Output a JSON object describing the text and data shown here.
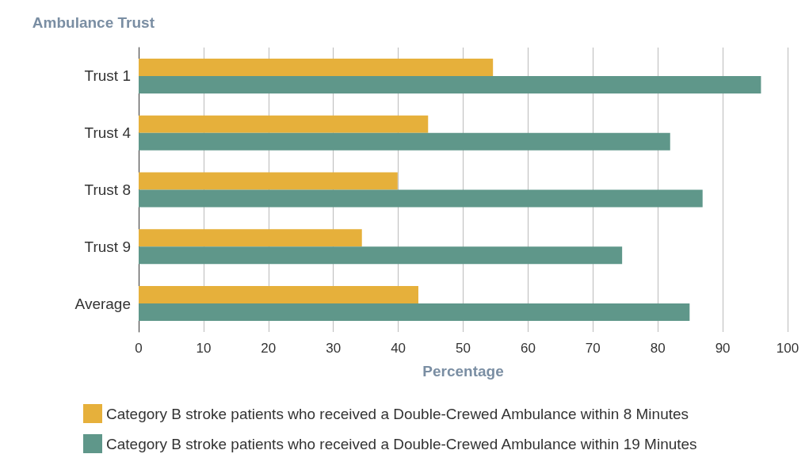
{
  "chart_data": {
    "type": "bar",
    "orientation": "horizontal",
    "ylabel": "Ambulance Trust",
    "xlabel": "Percentage",
    "categories": [
      "Trust 1",
      "Trust 4",
      "Trust 8",
      "Trust 9",
      "Average"
    ],
    "series": [
      {
        "name": "Category B stroke patients who received a Double-Crewed Ambulance within 8 Minutes",
        "color": "#e6b03b",
        "values": [
          54.6,
          44.6,
          39.9,
          34.4,
          43.1
        ]
      },
      {
        "name": "Category B stroke patients who received a Double-Crewed Ambulance within 19 Minutes",
        "color": "#5f978a",
        "values": [
          95.9,
          81.9,
          86.9,
          74.5,
          84.9
        ]
      }
    ],
    "xlim": [
      0,
      100
    ],
    "xticks": [
      0,
      10,
      20,
      30,
      40,
      50,
      60,
      70,
      80,
      90,
      100
    ],
    "grid": "x",
    "legend": "bottom left"
  }
}
